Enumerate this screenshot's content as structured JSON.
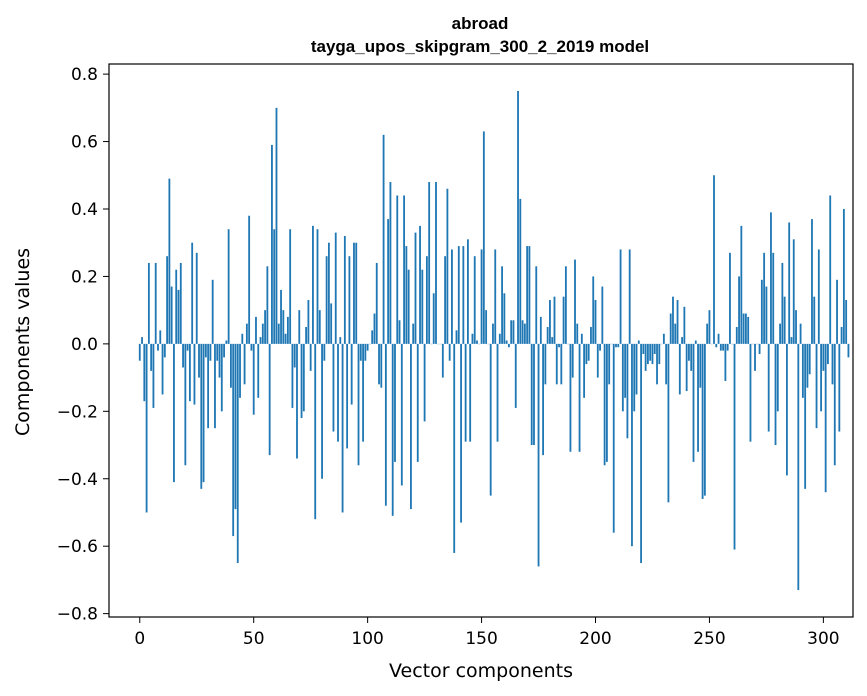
{
  "chart_data": {
    "type": "bar",
    "title_line1": "abroad",
    "title_line2": "tayga_upos_skipgram_300_2_2019 model",
    "xlabel": "Vector components",
    "ylabel": "Components values",
    "xlim": [
      -13.5,
      313
    ],
    "ylim": [
      -0.81,
      0.83
    ],
    "xticks": [
      0,
      50,
      100,
      150,
      200,
      250,
      300
    ],
    "xtick_labels": [
      "0",
      "50",
      "100",
      "150",
      "200",
      "250",
      "300"
    ],
    "yticks": [
      -0.8,
      -0.6,
      -0.4,
      -0.2,
      0.0,
      0.2,
      0.4,
      0.6,
      0.8
    ],
    "ytick_labels": [
      "−0.8",
      "−0.6",
      "−0.4",
      "−0.2",
      "0.0",
      "0.2",
      "0.4",
      "0.6",
      "0.8"
    ],
    "bar_color": "#1f77b4",
    "values": [
      -0.05,
      0.02,
      -0.17,
      -0.5,
      0.24,
      -0.08,
      -0.19,
      0.24,
      -0.02,
      0.04,
      -0.15,
      -0.04,
      0.26,
      0.49,
      0.17,
      -0.41,
      0.22,
      0.16,
      0.24,
      -0.07,
      -0.36,
      -0.02,
      -0.17,
      0.3,
      -0.18,
      0.27,
      -0.1,
      -0.43,
      -0.41,
      -0.04,
      -0.25,
      -0.05,
      0.19,
      -0.25,
      -0.05,
      -0.1,
      -0.2,
      -0.04,
      0.01,
      0.34,
      -0.13,
      -0.57,
      -0.49,
      -0.65,
      -0.16,
      0.03,
      -0.12,
      0.06,
      0.38,
      -0.02,
      -0.21,
      0.08,
      -0.16,
      0.02,
      0.06,
      0.1,
      0.23,
      -0.33,
      0.59,
      0.34,
      0.7,
      0.06,
      0.16,
      0.1,
      0.03,
      0.08,
      0.34,
      -0.19,
      -0.07,
      -0.34,
      0.1,
      -0.22,
      -0.2,
      0.05,
      0.13,
      -0.08,
      0.35,
      -0.52,
      0.34,
      0.1,
      -0.4,
      -0.05,
      0.26,
      0.3,
      0.12,
      -0.26,
      0.33,
      -0.29,
      0.02,
      -0.5,
      0.32,
      -0.31,
      0.26,
      -0.18,
      0.3,
      0.3,
      -0.36,
      -0.05,
      -0.29,
      -0.05,
      -0.02,
      0.0,
      0.04,
      0.09,
      0.24,
      -0.12,
      -0.13,
      0.62,
      -0.48,
      0.37,
      0.48,
      -0.51,
      -0.35,
      0.44,
      0.07,
      -0.42,
      0.44,
      0.29,
      0.22,
      -0.49,
      0.06,
      0.33,
      -0.35,
      0.35,
      0.22,
      -0.23,
      0.26,
      0.48,
      0.0,
      0.15,
      0.48,
      0.0,
      0.0,
      -0.1,
      0.26,
      0.46,
      -0.05,
      0.28,
      -0.62,
      0.04,
      0.29,
      -0.53,
      0.29,
      -0.29,
      0.31,
      -0.29,
      0.03,
      0.26,
      0.01,
      0.0,
      0.28,
      0.63,
      0.1,
      0.0,
      -0.45,
      0.06,
      0.28,
      -0.29,
      0.03,
      0.23,
      0.15,
      0.01,
      -0.01,
      0.07,
      0.07,
      -0.19,
      0.75,
      0.43,
      0.07,
      0.06,
      0.29,
      0.29,
      -0.3,
      -0.3,
      0.23,
      -0.66,
      0.08,
      -0.33,
      -0.12,
      0.05,
      0.13,
      0.02,
      0.14,
      -0.12,
      -0.01,
      -0.12,
      0.14,
      0.23,
      0.0,
      -0.32,
      -0.1,
      0.25,
      0.06,
      -0.32,
      0.03,
      -0.16,
      -0.06,
      -0.05,
      0.05,
      0.2,
      0.13,
      -0.1,
      -0.02,
      0.17,
      -0.36,
      -0.35,
      -0.12,
      0.0,
      -0.56,
      -0.01,
      -0.01,
      0.28,
      -0.2,
      -0.16,
      -0.28,
      0.28,
      -0.6,
      -0.2,
      -0.15,
      0.01,
      -0.65,
      -0.03,
      -0.08,
      -0.06,
      -0.05,
      -0.06,
      -0.03,
      -0.12,
      -0.06,
      0.0,
      0.03,
      -0.12,
      -0.47,
      0.09,
      0.14,
      0.06,
      0.13,
      -0.15,
      0.02,
      0.11,
      -0.14,
      -0.05,
      -0.08,
      -0.35,
      0.01,
      -0.32,
      -0.13,
      -0.46,
      -0.45,
      0.06,
      0.1,
      0.0,
      0.5,
      -0.01,
      0.03,
      -0.02,
      -0.02,
      -0.11,
      -0.02,
      0.27,
      0.0,
      -0.61,
      0.05,
      0.2,
      0.35,
      0.09,
      0.09,
      0.08,
      -0.29,
      0.0,
      -0.08,
      0.0,
      -0.03,
      0.19,
      0.27,
      0.17,
      -0.26,
      0.39,
      0.27,
      -0.3,
      -0.2,
      0.06,
      0.24,
      0.14,
      -0.39,
      0.36,
      0.02,
      0.31,
      0.1,
      -0.73,
      0.06,
      -0.16,
      -0.43,
      -0.13,
      -0.09,
      0.37,
      0.14,
      -0.25,
      0.28,
      -0.2,
      -0.08,
      -0.44,
      -0.06,
      0.44,
      -0.12,
      -0.36,
      0.19,
      -0.26,
      0.05,
      0.4,
      0.13,
      -0.04
    ]
  }
}
